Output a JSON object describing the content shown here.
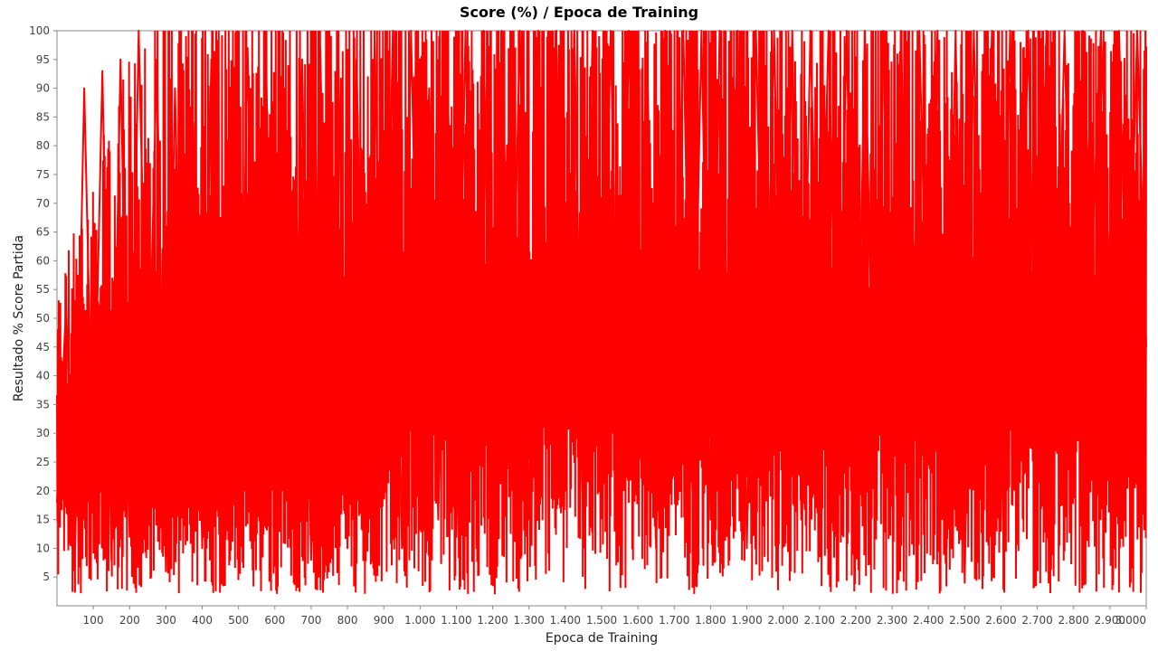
{
  "chart_data": {
    "type": "line",
    "title": "Score (%) / Epoca de Training",
    "xlabel": "Epoca de Training",
    "ylabel": "Resultado % Score Partida",
    "xlim": [
      0,
      3000
    ],
    "ylim": [
      0,
      100
    ],
    "x_ticks": [
      {
        "value": 100,
        "label": "100"
      },
      {
        "value": 200,
        "label": "200"
      },
      {
        "value": 300,
        "label": "300"
      },
      {
        "value": 400,
        "label": "400"
      },
      {
        "value": 500,
        "label": "500"
      },
      {
        "value": 600,
        "label": "600"
      },
      {
        "value": 700,
        "label": "700"
      },
      {
        "value": 800,
        "label": "800"
      },
      {
        "value": 900,
        "label": "900"
      },
      {
        "value": 1000,
        "label": "1.000"
      },
      {
        "value": 1100,
        "label": "1.100"
      },
      {
        "value": 1200,
        "label": "1.200"
      },
      {
        "value": 1300,
        "label": "1.300"
      },
      {
        "value": 1400,
        "label": "1.400"
      },
      {
        "value": 1500,
        "label": "1.500"
      },
      {
        "value": 1600,
        "label": "1.600"
      },
      {
        "value": 1700,
        "label": "1.700"
      },
      {
        "value": 1800,
        "label": "1.800"
      },
      {
        "value": 1900,
        "label": "1.900"
      },
      {
        "value": 2000,
        "label": "2.000"
      },
      {
        "value": 2100,
        "label": "2.100"
      },
      {
        "value": 2200,
        "label": "2.200"
      },
      {
        "value": 2300,
        "label": "2.300"
      },
      {
        "value": 2400,
        "label": "2.400"
      },
      {
        "value": 2500,
        "label": "2.500"
      },
      {
        "value": 2600,
        "label": "2.600"
      },
      {
        "value": 2700,
        "label": "2.700"
      },
      {
        "value": 2800,
        "label": "2.800"
      },
      {
        "value": 2900,
        "label": "2.900"
      },
      {
        "value": 3000,
        "label": "3.000"
      }
    ],
    "y_ticks": [
      {
        "value": 5,
        "label": "5"
      },
      {
        "value": 10,
        "label": "10"
      },
      {
        "value": 15,
        "label": "15"
      },
      {
        "value": 20,
        "label": "20"
      },
      {
        "value": 25,
        "label": "25"
      },
      {
        "value": 30,
        "label": "30"
      },
      {
        "value": 35,
        "label": "35"
      },
      {
        "value": 40,
        "label": "40"
      },
      {
        "value": 45,
        "label": "45"
      },
      {
        "value": 50,
        "label": "50"
      },
      {
        "value": 55,
        "label": "55"
      },
      {
        "value": 60,
        "label": "60"
      },
      {
        "value": 65,
        "label": "65"
      },
      {
        "value": 70,
        "label": "70"
      },
      {
        "value": 75,
        "label": "75"
      },
      {
        "value": 80,
        "label": "80"
      },
      {
        "value": 85,
        "label": "85"
      },
      {
        "value": 90,
        "label": "90"
      },
      {
        "value": 95,
        "label": "95"
      },
      {
        "value": 100,
        "label": "100"
      }
    ],
    "grid": false,
    "legend": "none",
    "colors": {
      "series": "#ff0000",
      "frame": "#888888",
      "background": "#ffffff"
    },
    "series": [
      {
        "x": [
          0,
          25,
          50,
          75,
          100,
          125,
          150,
          175,
          200,
          225,
          250,
          275,
          300,
          325,
          350,
          375,
          400,
          425,
          450,
          475,
          500,
          525,
          550,
          575,
          600,
          625,
          650,
          675,
          700,
          725,
          750,
          775,
          800,
          825,
          850,
          875,
          900,
          925,
          950,
          975,
          1000,
          1025,
          1050,
          1075,
          1100,
          1125,
          1150,
          1175,
          1200,
          1225,
          1250,
          1275,
          1300,
          1325,
          1350,
          1375,
          1400,
          1425,
          1450,
          1475,
          1500,
          1525,
          1550,
          1575,
          1600,
          1625,
          1650,
          1675,
          1700,
          1725,
          1750,
          1775,
          1800,
          1825,
          1850,
          1875,
          1900,
          1925,
          1950,
          1975,
          2000,
          2025,
          2050,
          2075,
          2100,
          2125,
          2150,
          2175,
          2200,
          2225,
          2250,
          2275,
          2300,
          2325,
          2350,
          2375,
          2400,
          2425,
          2450,
          2475,
          2500,
          2525,
          2550,
          2575,
          2600,
          2625,
          2650,
          2675,
          2700,
          2725,
          2750,
          2775,
          2800,
          2825,
          2850,
          2875,
          2900,
          2925,
          2950,
          2975,
          3000
        ],
        "y": [
          18,
          52,
          10,
          90,
          20,
          93,
          8,
          95,
          12,
          100,
          30,
          95,
          6,
          90,
          14,
          84,
          10,
          95,
          20,
          60,
          12,
          97,
          15,
          98,
          10,
          90,
          15,
          95,
          8,
          97,
          18,
          95,
          10,
          95,
          12,
          98,
          20,
          100,
          10,
          100,
          25,
          90,
          15,
          95,
          12,
          100,
          20,
          100,
          10,
          100,
          30,
          100,
          15,
          100,
          40,
          100,
          20,
          100,
          10,
          100,
          25,
          100,
          15,
          100,
          30,
          98,
          10,
          100,
          35,
          100,
          20,
          100,
          15,
          100,
          40,
          100,
          10,
          100,
          30,
          100,
          20,
          100,
          15,
          100,
          35,
          100,
          25,
          100,
          10,
          100,
          30,
          100,
          20,
          100,
          15,
          100,
          35,
          100,
          10,
          100,
          4,
          100,
          40,
          100,
          15,
          100,
          30,
          100,
          20,
          100,
          35,
          100,
          25,
          100,
          60,
          100,
          55,
          100,
          40,
          100,
          45
        ]
      }
    ]
  }
}
